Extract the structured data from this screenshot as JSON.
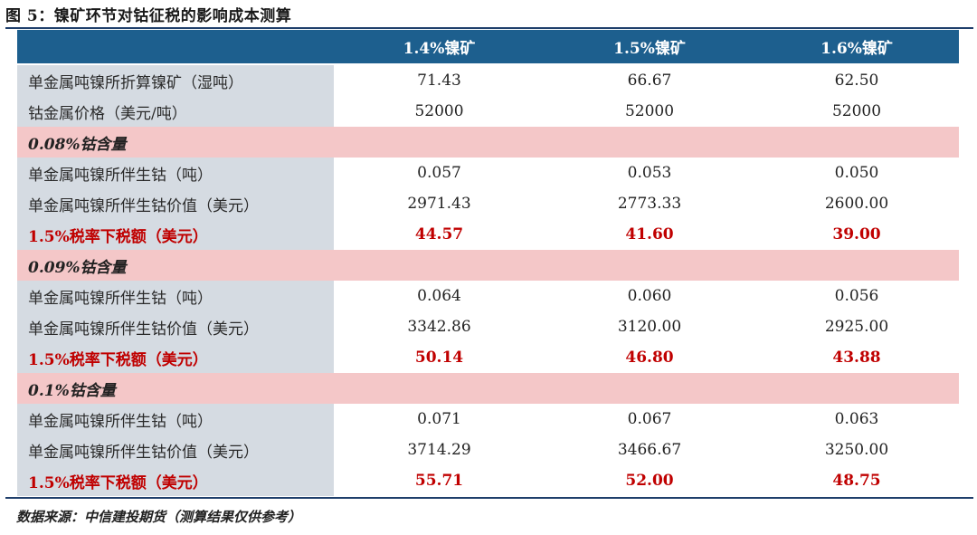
{
  "caption": "图 5：镍矿环节对钴征税的影响成本测算",
  "table": {
    "headers": [
      "",
      "1.4%镍矿",
      "1.5%镍矿",
      "1.6%镍矿"
    ],
    "rows": [
      {
        "type": "data",
        "label": "单金属吨镍所折算镍矿（湿吨）",
        "values": [
          "71.43",
          "66.67",
          "62.50"
        ]
      },
      {
        "type": "data",
        "label": "钴金属价格（美元/吨）",
        "values": [
          "52000",
          "52000",
          "52000"
        ]
      },
      {
        "type": "section",
        "label": "0.08%钴含量"
      },
      {
        "type": "data",
        "label": "单金属吨镍所伴生钴（吨）",
        "values": [
          "0.057",
          "0.053",
          "0.050"
        ]
      },
      {
        "type": "data",
        "label": "单金属吨镍所伴生钴价值（美元）",
        "values": [
          "2971.43",
          "2773.33",
          "2600.00"
        ]
      },
      {
        "type": "tax",
        "label": "1.5%税率下税额（美元）",
        "values": [
          "44.57",
          "41.60",
          "39.00"
        ]
      },
      {
        "type": "section",
        "label": "0.09%钴含量"
      },
      {
        "type": "data",
        "label": "单金属吨镍所伴生钴（吨）",
        "values": [
          "0.064",
          "0.060",
          "0.056"
        ]
      },
      {
        "type": "data",
        "label": "单金属吨镍所伴生钴价值（美元）",
        "values": [
          "3342.86",
          "3120.00",
          "2925.00"
        ]
      },
      {
        "type": "tax",
        "label": "1.5%税率下税额（美元）",
        "values": [
          "50.14",
          "46.80",
          "43.88"
        ]
      },
      {
        "type": "section",
        "label": "0.1%钴含量"
      },
      {
        "type": "data",
        "label": "单金属吨镍所伴生钴（吨）",
        "values": [
          "0.071",
          "0.067",
          "0.063"
        ]
      },
      {
        "type": "data",
        "label": "单金属吨镍所伴生钴价值（美元）",
        "values": [
          "3714.29",
          "3466.67",
          "3250.00"
        ]
      },
      {
        "type": "tax",
        "label": "1.5%税率下税额（美元）",
        "values": [
          "55.71",
          "52.00",
          "48.75"
        ]
      }
    ]
  },
  "source": "数据来源：中信建投期货（测算结果仅供参考）",
  "colors": {
    "header_bg": "#1d5f8e",
    "label_bg": "#d5dbe2",
    "section_bg": "#f4c7c8",
    "tax_text": "#c00000",
    "rule": "#1f3f6b"
  }
}
